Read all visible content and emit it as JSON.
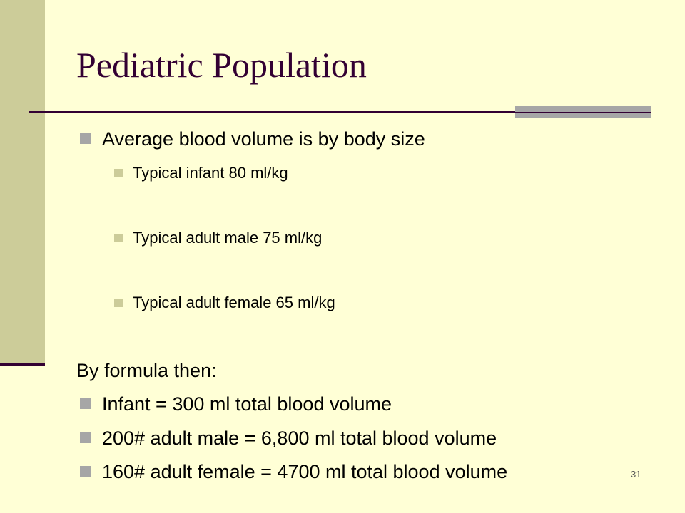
{
  "title": "Pediatric Population",
  "items": [
    {
      "text": "Average blood volume is by body size",
      "subitems": [
        "Typical infant 80 ml/kg",
        "Typical adult male 75 ml/kg",
        "Typical adult female 65 ml/kg"
      ]
    }
  ],
  "formula_heading": "By formula then:",
  "formula_items": [
    "Infant = 300 ml total blood volume",
    "200# adult male = 6,800 ml total blood volume",
    "160# adult female = 4700 ml total blood volume"
  ],
  "slide_number": "31"
}
